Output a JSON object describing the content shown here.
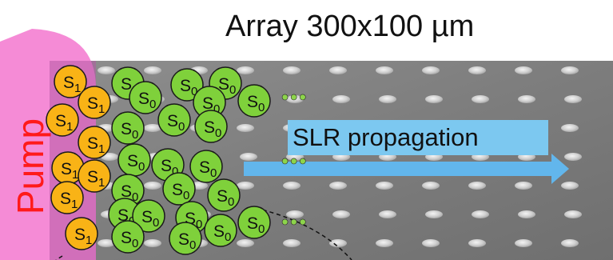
{
  "title": "Array 300x100 µm",
  "pump_label": "Pump",
  "arrow_label": "SLR propagation",
  "molecule_labels": {
    "excited": "S",
    "excited_sub": "1",
    "ground": "S",
    "ground_sub": "0"
  },
  "ellipsis": "•••",
  "colors": {
    "pump": "#f58bd6",
    "excited_fill": "#f9b316",
    "ground_fill": "#7fd13b",
    "arrow": "#62b6ec",
    "pump_text": "#ff1a1a",
    "ellipsis": "#8dd44b"
  }
}
